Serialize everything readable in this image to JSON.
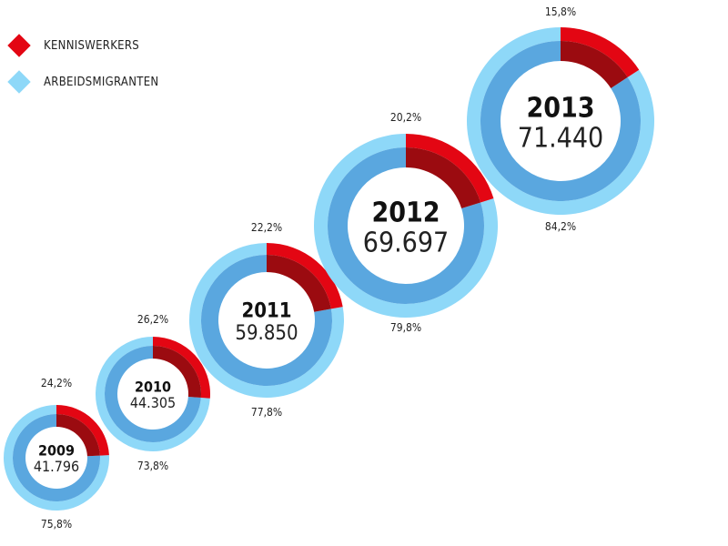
{
  "legend": [
    {
      "label": "KENNISWERKERS",
      "color": "#e30613"
    },
    {
      "label": "ARBEIDSMIGRANTEN",
      "color": "#8ed8f8"
    }
  ],
  "chart_data": {
    "type": "donut",
    "series_names": [
      "KENNISWERKERS",
      "ARBEIDSMIGRANTEN"
    ],
    "colors": {
      "kenniswerkers_outer": "#e30613",
      "kenniswerkers_inner": "#9b0b10",
      "arbeidsmigranten_outer": "#8ed8f8",
      "arbeidsmigranten_inner": "#5aa7df"
    },
    "items": [
      {
        "year": "2009",
        "total": "41.796",
        "kenniswerkers_pct": 24.2,
        "kenniswerkers_label": "24,2%",
        "arbeidsmigranten_pct": 75.8,
        "arbeidsmigranten_label": "75,8%"
      },
      {
        "year": "2010",
        "total": "44.305",
        "kenniswerkers_pct": 26.2,
        "kenniswerkers_label": "26,2%",
        "arbeidsmigranten_pct": 73.8,
        "arbeidsmigranten_label": "73,8%"
      },
      {
        "year": "2011",
        "total": "59.850",
        "kenniswerkers_pct": 22.2,
        "kenniswerkers_label": "22,2%",
        "arbeidsmigranten_pct": 77.8,
        "arbeidsmigranten_label": "77,8%"
      },
      {
        "year": "2012",
        "total": "69.697",
        "kenniswerkers_pct": 20.2,
        "kenniswerkers_label": "20,2%",
        "arbeidsmigranten_pct": 79.8,
        "arbeidsmigranten_label": "79,8%"
      },
      {
        "year": "2013",
        "total": "71.440",
        "kenniswerkers_pct": 15.8,
        "kenniswerkers_label": "15,8%",
        "arbeidsmigranten_pct": 84.2,
        "arbeidsmigranten_label": "84,2%"
      }
    ]
  }
}
